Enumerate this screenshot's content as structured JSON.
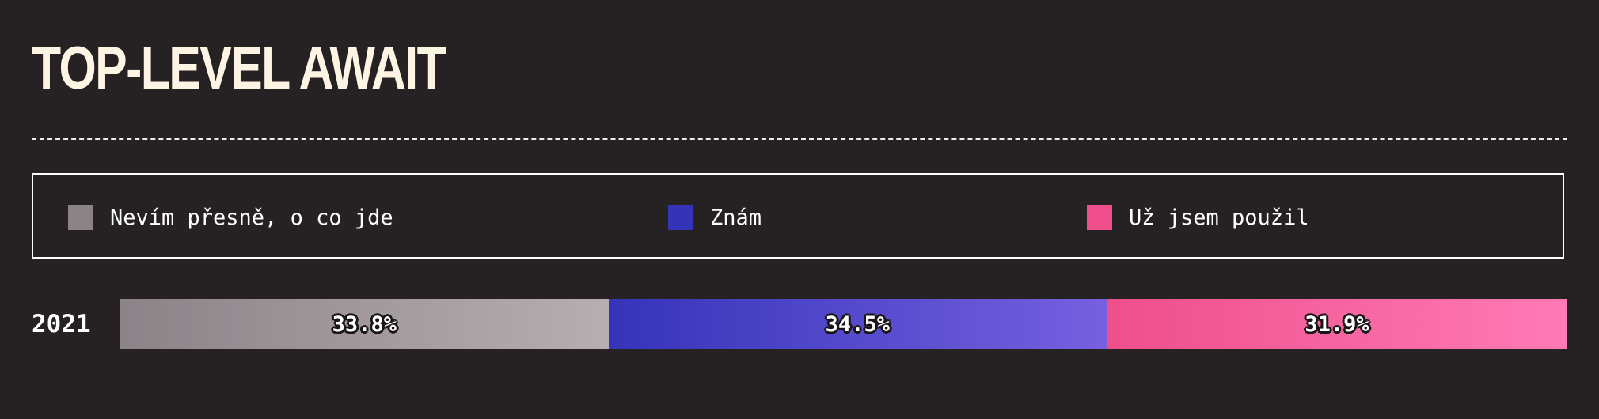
{
  "chart_data": {
    "type": "bar",
    "title": "TOP-LEVEL AWAIT",
    "orientation": "horizontal-stacked",
    "categories": [
      "2021"
    ],
    "series": [
      {
        "name": "Nevím přesně, o co jde",
        "values": [
          33.8
        ],
        "label": "33.8%",
        "color_start": "#8c8388",
        "color_end": "#b7aeb2"
      },
      {
        "name": "Znám",
        "values": [
          34.5
        ],
        "label": "34.5%",
        "color_start": "#3534b9",
        "color_end": "#7660e0"
      },
      {
        "name": "Už jsem použil",
        "values": [
          31.9
        ],
        "label": "31.9%",
        "color_start": "#ee4f8a",
        "color_end": "#ff7ab6"
      }
    ],
    "legend_position": "top",
    "grid": false
  },
  "colors": {
    "background": "#262224",
    "title": "#fdf4e3"
  }
}
